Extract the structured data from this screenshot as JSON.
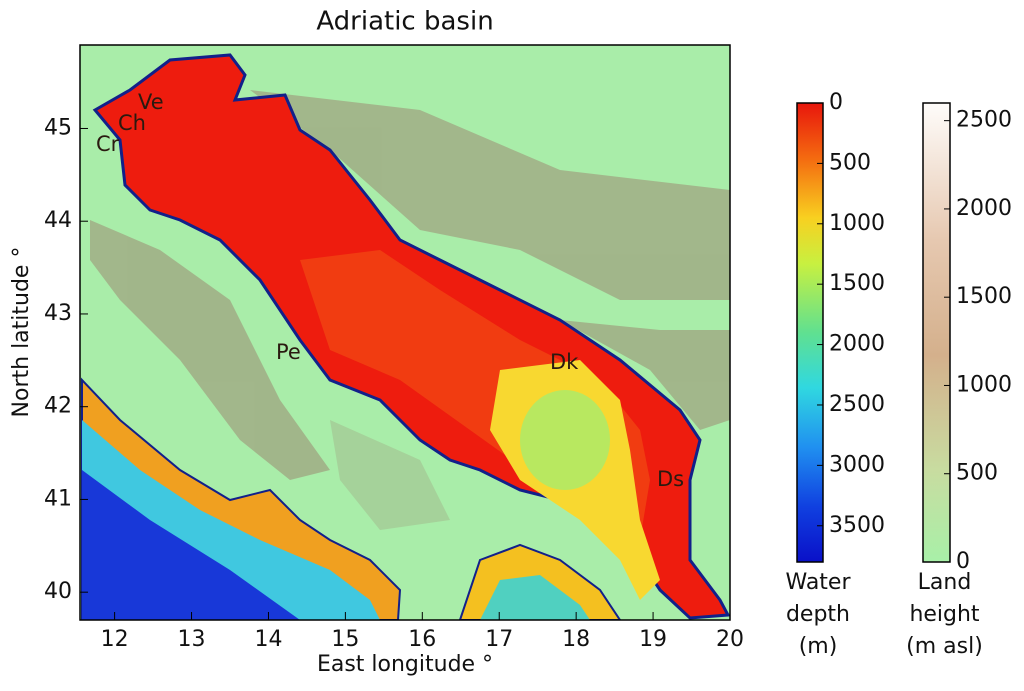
{
  "chart_data": {
    "type": "map",
    "title": "Adriatic basin",
    "x_label": "East longitude °",
    "y_label": "North latitude °",
    "xlim": [
      11.55,
      20
    ],
    "ylim": [
      39.7,
      45.9
    ],
    "xticks": [
      12,
      13,
      14,
      15,
      16,
      17,
      18,
      19,
      20
    ],
    "yticks": [
      40,
      41,
      42,
      43,
      44,
      45
    ],
    "annotations": [
      "Ve",
      "Ch",
      "Cr",
      "Pe",
      "Dk",
      "Ds"
    ],
    "colorbars": [
      {
        "label": [
          "Water",
          "depth",
          "(m)"
        ],
        "lim": [
          0,
          3800
        ],
        "ticks": [
          0,
          500,
          1000,
          1500,
          2000,
          2500,
          3000,
          3500
        ],
        "inverted": true
      },
      {
        "label": [
          "Land",
          "height",
          "(m asl)"
        ],
        "lim": [
          0,
          2600
        ],
        "ticks": [
          0,
          500,
          1000,
          1500,
          2000,
          2500
        ],
        "inverted": false
      }
    ]
  }
}
